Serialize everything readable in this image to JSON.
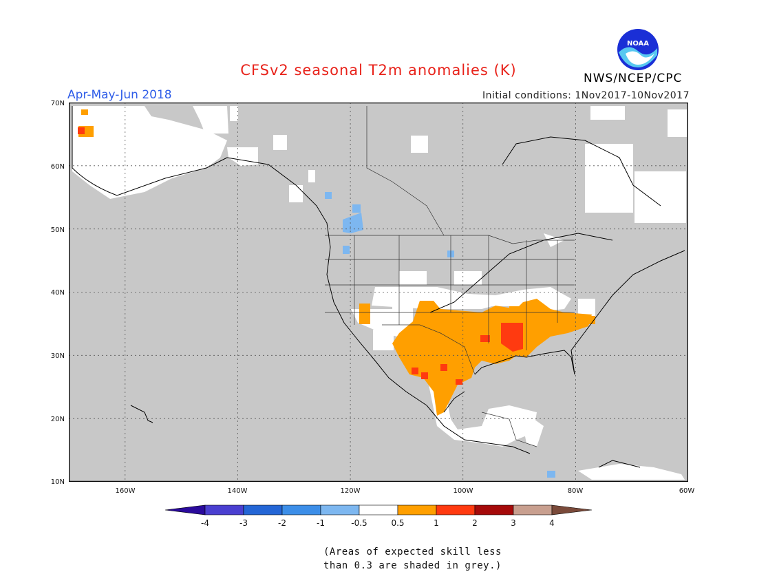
{
  "header": {
    "title": "CFSv2 seasonal T2m anomalies (K)",
    "period": "Apr-May-Jun 2018",
    "initial_conditions": "Initial conditions: 1Nov2017-10Nov2017",
    "agency": "NWS/NCEP/CPC",
    "logo_text": "NOAA"
  },
  "map": {
    "projection": "lat-lon",
    "lon_range": [
      -170,
      -60
    ],
    "lat_range": [
      10,
      70
    ],
    "graticule": "dotted",
    "background_color": "#c8c8c8",
    "lat_labels": [
      "70N",
      "60N",
      "50N",
      "40N",
      "30N",
      "20N",
      "10N"
    ],
    "lon_labels": [
      "160W",
      "140W",
      "120W",
      "100W",
      "80W",
      "60W"
    ],
    "regions": [
      {
        "name": "Southern Plains / Texas",
        "anomaly_class": "0.5 to 1"
      },
      {
        "name": "Lower Mississippi Valley",
        "anomaly_class": "1 to 2"
      },
      {
        "name": "Southeast US",
        "anomaly_class": "0.5 to 1"
      },
      {
        "name": "Pacific Northwest / British Columbia",
        "anomaly_class": "-1 to -0.5"
      },
      {
        "name": "Western Alaska",
        "anomaly_class": "0.5 to 1"
      }
    ]
  },
  "colorbar": {
    "ticks": [
      "-4",
      "-3",
      "-2",
      "-1",
      "-0.5",
      "0.5",
      "1",
      "2",
      "3",
      "4"
    ],
    "colors": [
      "#2a0a9c",
      "#4a3fd0",
      "#2466d6",
      "#3c8ee8",
      "#7db7f0",
      "#ffffff",
      "#ff9f00",
      "#ff3a10",
      "#a50a0a",
      "#c89f8f",
      "#7a4a3a"
    ]
  },
  "footnote": {
    "line1": "(Areas of expected skill less",
    "line2": "than 0.3 are shaded in grey.)"
  }
}
